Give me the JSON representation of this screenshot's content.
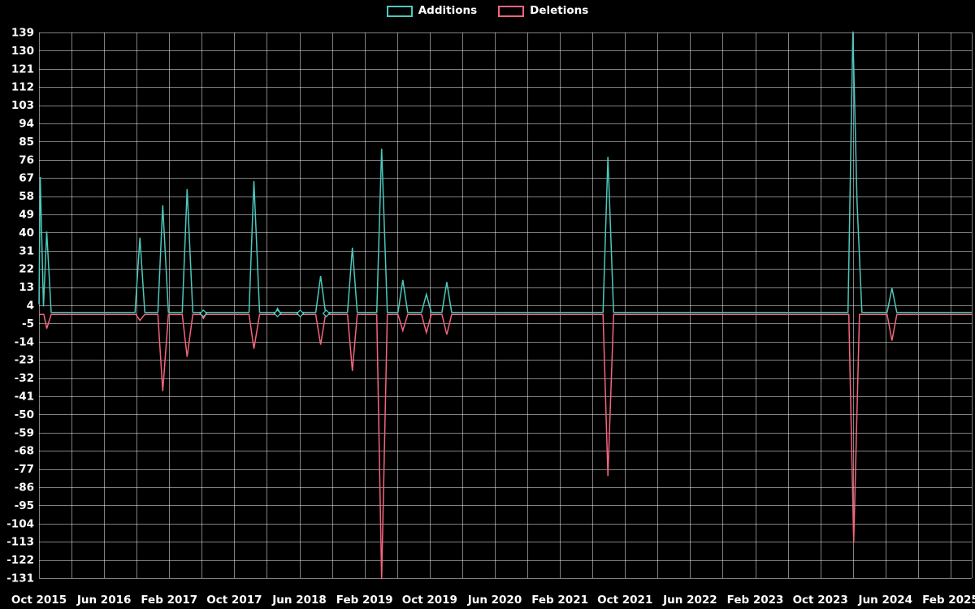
{
  "legend": {
    "items": [
      {
        "label": "Additions",
        "color": "#4dc8bd"
      },
      {
        "label": "Deletions",
        "color": "#f4657d"
      }
    ]
  },
  "chart_data": {
    "type": "line",
    "title": "",
    "grid": true,
    "background": "#000000",
    "grid_color": "rgba(255,255,255,0.5)",
    "label_color": "#ffffff",
    "legend_position": "top-center",
    "x_axis": {
      "unit": "months since Oct 2015",
      "months_range": [
        0,
        114.6
      ],
      "tick_interval_months": 8,
      "grid_interval_months": 4,
      "tick_labels": [
        "Oct 2015",
        "Jun 2016",
        "Feb 2017",
        "Oct 2017",
        "Jun 2018",
        "Feb 2019",
        "Oct 2019",
        "Jun 2020",
        "Feb 2021",
        "Oct 2021",
        "Jun 2022",
        "Feb 2023",
        "Oct 2023",
        "Jun 2024",
        "Feb 2025"
      ]
    },
    "y_axis": {
      "min": -131,
      "max": 139,
      "tick_step": 9,
      "tick_labels": [
        "139",
        "130",
        "121",
        "112",
        "103",
        "94",
        "85",
        "76",
        "67",
        "58",
        "49",
        "40",
        "31",
        "22",
        "13",
        "4",
        "-5",
        "-14",
        "-23",
        "-32",
        "-41",
        "-50",
        "-59",
        "-68",
        "-77",
        "-86",
        "-95",
        "-104",
        "-113",
        "-122",
        "-131"
      ]
    },
    "series": [
      {
        "name": "Additions",
        "color": "#4dc8bd",
        "points": [
          [
            0,
            4
          ],
          [
            0.15,
            67
          ],
          [
            0.55,
            3
          ],
          [
            0.95,
            40
          ],
          [
            1.5,
            0
          ],
          [
            11.8,
            0
          ],
          [
            12.4,
            37
          ],
          [
            13.0,
            0
          ],
          [
            14.6,
            0
          ],
          [
            15.2,
            53
          ],
          [
            15.9,
            0
          ],
          [
            17.6,
            0
          ],
          [
            18.2,
            61
          ],
          [
            18.9,
            0
          ],
          [
            25.8,
            0
          ],
          [
            26.4,
            65
          ],
          [
            27.1,
            0
          ],
          [
            29.1,
            0
          ],
          [
            29.3,
            2
          ],
          [
            29.6,
            0
          ],
          [
            34.0,
            0
          ],
          [
            34.6,
            18
          ],
          [
            35.2,
            0
          ],
          [
            37.9,
            0
          ],
          [
            38.5,
            32
          ],
          [
            39.1,
            0
          ],
          [
            41.5,
            0
          ],
          [
            42.1,
            81
          ],
          [
            42.8,
            0
          ],
          [
            44.1,
            0
          ],
          [
            44.7,
            16
          ],
          [
            45.3,
            0
          ],
          [
            47.0,
            0
          ],
          [
            47.6,
            9
          ],
          [
            48.2,
            0
          ],
          [
            49.5,
            0
          ],
          [
            50.1,
            15
          ],
          [
            50.7,
            0
          ],
          [
            69.3,
            0
          ],
          [
            69.9,
            77
          ],
          [
            70.6,
            0
          ],
          [
            99.4,
            0
          ],
          [
            100.0,
            139
          ],
          [
            100.5,
            55
          ],
          [
            101.1,
            0
          ],
          [
            104.2,
            0
          ],
          [
            104.8,
            12
          ],
          [
            105.4,
            0
          ],
          [
            114.6,
            0
          ]
        ]
      },
      {
        "name": "Deletions",
        "color": "#f4657d",
        "points": [
          [
            0,
            0
          ],
          [
            0.6,
            0
          ],
          [
            0.95,
            -7
          ],
          [
            1.5,
            0
          ],
          [
            11.9,
            0
          ],
          [
            12.4,
            -3
          ],
          [
            13.0,
            0
          ],
          [
            14.6,
            0
          ],
          [
            15.2,
            -38
          ],
          [
            15.9,
            0
          ],
          [
            17.6,
            0
          ],
          [
            18.2,
            -21
          ],
          [
            18.9,
            0
          ],
          [
            19.9,
            0
          ],
          [
            20.2,
            -2
          ],
          [
            20.5,
            0
          ],
          [
            25.8,
            0
          ],
          [
            26.4,
            -17
          ],
          [
            27.1,
            0
          ],
          [
            34.0,
            0
          ],
          [
            34.6,
            -15
          ],
          [
            35.2,
            0
          ],
          [
            37.9,
            0
          ],
          [
            38.5,
            -28
          ],
          [
            39.1,
            0
          ],
          [
            41.5,
            0
          ],
          [
            42.1,
            -131
          ],
          [
            42.8,
            0
          ],
          [
            44.1,
            0
          ],
          [
            44.7,
            -8
          ],
          [
            45.3,
            0
          ],
          [
            47.0,
            0
          ],
          [
            47.6,
            -9
          ],
          [
            48.2,
            0
          ],
          [
            49.5,
            0
          ],
          [
            50.1,
            -10
          ],
          [
            50.7,
            0
          ],
          [
            69.3,
            0
          ],
          [
            69.9,
            -80
          ],
          [
            70.6,
            0
          ],
          [
            99.5,
            0
          ],
          [
            100.1,
            -113
          ],
          [
            100.8,
            0
          ],
          [
            104.2,
            0
          ],
          [
            104.8,
            -13
          ],
          [
            105.4,
            0
          ],
          [
            114.6,
            0
          ]
        ]
      }
    ],
    "point_markers": {
      "shape": "diamond",
      "color": "#4dc8bd",
      "points": [
        [
          20.2,
          0
        ],
        [
          29.3,
          0
        ],
        [
          32.1,
          0
        ],
        [
          35.3,
          0
        ]
      ]
    }
  }
}
